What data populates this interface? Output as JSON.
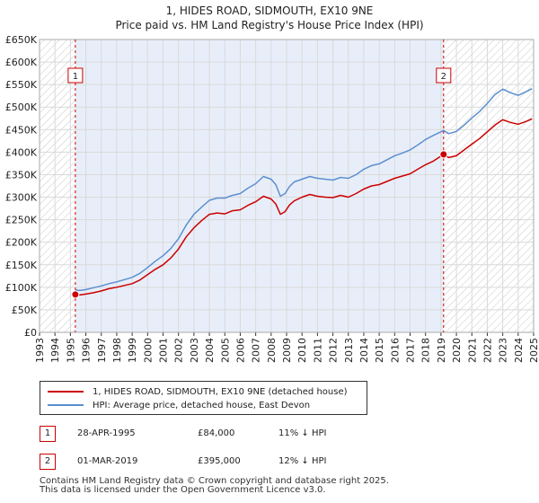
{
  "title": {
    "line1": "1, HIDES ROAD, SIDMOUTH, EX10 9NE",
    "line2": "Price paid vs. HM Land Registry's House Price Index (HPI)"
  },
  "chart_data": {
    "type": "line",
    "title": "1, HIDES ROAD, SIDMOUTH, EX10 9NE — Price paid vs. HM Land Registry's House Price Index (HPI)",
    "xlabel": "",
    "ylabel": "",
    "xlim": [
      1993,
      2025
    ],
    "ylim": [
      0,
      650000
    ],
    "x_ticks": [
      "1993",
      "1994",
      "1995",
      "1996",
      "1997",
      "1998",
      "1999",
      "2000",
      "2001",
      "2002",
      "2003",
      "2004",
      "2005",
      "2006",
      "2007",
      "2008",
      "2009",
      "2010",
      "2011",
      "2012",
      "2013",
      "2014",
      "2015",
      "2016",
      "2017",
      "2018",
      "2019",
      "2020",
      "2021",
      "2022",
      "2023",
      "2024",
      "2025"
    ],
    "y_ticks": [
      {
        "value": 0,
        "label": "£0"
      },
      {
        "value": 50000,
        "label": "£50K"
      },
      {
        "value": 100000,
        "label": "£100K"
      },
      {
        "value": 150000,
        "label": "£150K"
      },
      {
        "value": 200000,
        "label": "£200K"
      },
      {
        "value": 250000,
        "label": "£250K"
      },
      {
        "value": 300000,
        "label": "£300K"
      },
      {
        "value": 350000,
        "label": "£350K"
      },
      {
        "value": 400000,
        "label": "£400K"
      },
      {
        "value": 450000,
        "label": "£450K"
      },
      {
        "value": 500000,
        "label": "£500K"
      },
      {
        "value": 550000,
        "label": "£550K"
      },
      {
        "value": 600000,
        "label": "£600K"
      },
      {
        "value": 650000,
        "label": "£650K"
      }
    ],
    "grid": true,
    "shaded_periods": [
      {
        "from": 1993,
        "to": 1995.32,
        "style": "hatched"
      },
      {
        "from": 2019.17,
        "to": 2025,
        "style": "hatched"
      },
      {
        "from": 1995.32,
        "to": 2019.17,
        "style": "highlight"
      }
    ],
    "series": [
      {
        "name": "1, HIDES ROAD, SIDMOUTH, EX10 9NE (detached house)",
        "color": "#cc0000",
        "x": [
          1995.32,
          1995.6,
          1996.0,
          1996.5,
          1997.0,
          1997.5,
          1998.0,
          1998.5,
          1999.0,
          1999.5,
          2000.0,
          2000.5,
          2001.0,
          2001.5,
          2002.0,
          2002.5,
          2003.0,
          2003.5,
          2004.0,
          2004.5,
          2005.0,
          2005.5,
          2006.0,
          2006.5,
          2007.0,
          2007.5,
          2008.0,
          2008.3,
          2008.6,
          2008.9,
          2009.2,
          2009.5,
          2010.0,
          2010.5,
          2011.0,
          2011.5,
          2012.0,
          2012.5,
          2013.0,
          2013.5,
          2014.0,
          2014.5,
          2015.0,
          2015.5,
          2016.0,
          2016.5,
          2017.0,
          2017.5,
          2018.0,
          2018.5,
          2019.17,
          2019.5,
          2020.0,
          2020.5,
          2021.0,
          2021.5,
          2022.0,
          2022.5,
          2023.0,
          2023.5,
          2024.0,
          2024.5,
          2024.9
        ],
        "values": [
          84000,
          83000,
          85000,
          88000,
          92000,
          97000,
          100000,
          104000,
          108000,
          116000,
          128000,
          140000,
          150000,
          165000,
          185000,
          212000,
          232000,
          248000,
          262000,
          265000,
          263000,
          270000,
          272000,
          282000,
          290000,
          302000,
          296000,
          285000,
          262000,
          268000,
          283000,
          292000,
          300000,
          306000,
          302000,
          300000,
          299000,
          304000,
          300000,
          308000,
          318000,
          325000,
          328000,
          335000,
          342000,
          347000,
          352000,
          362000,
          372000,
          380000,
          395000,
          388000,
          392000,
          405000,
          418000,
          430000,
          445000,
          460000,
          472000,
          466000,
          462000,
          468000,
          474000
        ]
      },
      {
        "name": "HPI: Average price, detached house, East Devon",
        "color": "#5b8fcf",
        "x": [
          1995.32,
          1995.6,
          1996.0,
          1996.5,
          1997.0,
          1997.5,
          1998.0,
          1998.5,
          1999.0,
          1999.5,
          2000.0,
          2000.5,
          2001.0,
          2001.5,
          2002.0,
          2002.5,
          2003.0,
          2003.5,
          2004.0,
          2004.5,
          2005.0,
          2005.5,
          2006.0,
          2006.5,
          2007.0,
          2007.5,
          2008.0,
          2008.3,
          2008.6,
          2008.9,
          2009.2,
          2009.5,
          2010.0,
          2010.5,
          2011.0,
          2011.5,
          2012.0,
          2012.5,
          2013.0,
          2013.5,
          2014.0,
          2014.5,
          2015.0,
          2015.5,
          2016.0,
          2016.5,
          2017.0,
          2017.5,
          2018.0,
          2018.5,
          2019.17,
          2019.5,
          2020.0,
          2020.5,
          2021.0,
          2021.5,
          2022.0,
          2022.5,
          2023.0,
          2023.5,
          2024.0,
          2024.5,
          2024.9
        ],
        "values": [
          94000,
          93000,
          95000,
          99000,
          103000,
          108000,
          112000,
          117000,
          122000,
          131000,
          144000,
          158000,
          170000,
          186000,
          208000,
          238000,
          262000,
          278000,
          293000,
          298000,
          298000,
          304000,
          308000,
          320000,
          330000,
          346000,
          340000,
          328000,
          302000,
          308000,
          324000,
          334000,
          340000,
          346000,
          342000,
          340000,
          338000,
          344000,
          342000,
          350000,
          362000,
          370000,
          374000,
          383000,
          392000,
          398000,
          405000,
          416000,
          428000,
          437000,
          448000,
          441000,
          446000,
          460000,
          476000,
          490000,
          508000,
          528000,
          540000,
          532000,
          526000,
          534000,
          541000
        ]
      }
    ],
    "annotations": [
      {
        "id": "1",
        "label": "1",
        "x": 1995.32,
        "value": 84000
      },
      {
        "id": "2",
        "label": "2",
        "x": 2019.17,
        "value": 395000
      }
    ],
    "legend_position": "bottom-left"
  },
  "legend": {
    "items": [
      {
        "label": "1, HIDES ROAD, SIDMOUTH, EX10 9NE (detached house)",
        "color": "#cc0000"
      },
      {
        "label": "HPI: Average price, detached house, East Devon",
        "color": "#5b8fcf"
      }
    ]
  },
  "transactions": [
    {
      "id": "1",
      "date": "28-APR-1995",
      "price": "£84,000",
      "hpi": "11% ↓ HPI"
    },
    {
      "id": "2",
      "date": "01-MAR-2019",
      "price": "£395,000",
      "hpi": "12% ↓ HPI"
    }
  ],
  "footer": {
    "line1": "Contains HM Land Registry data © Crown copyright and database right 2025.",
    "line2": "This data is licensed under the Open Government Licence v3.0."
  }
}
